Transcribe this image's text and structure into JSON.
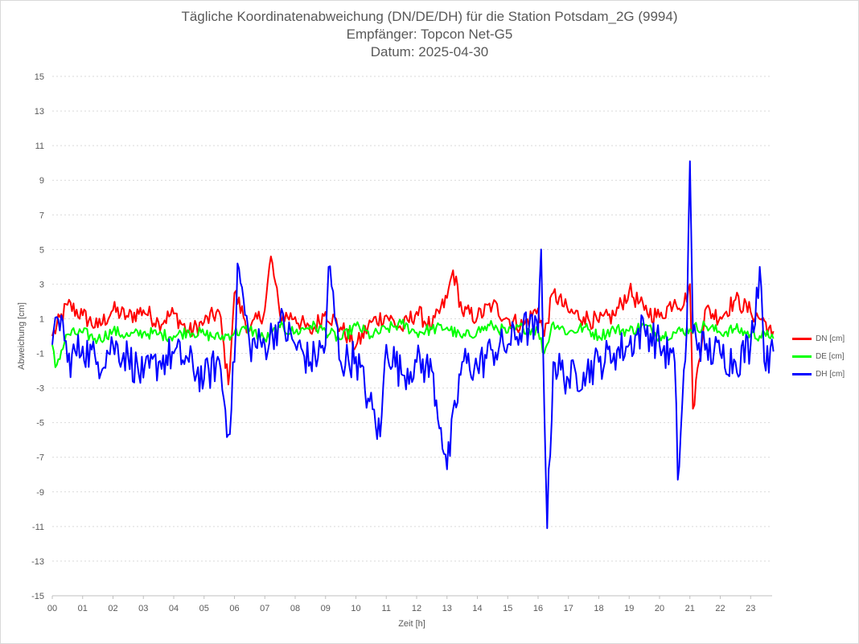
{
  "chart": {
    "title_line1": "Tägliche Koordinatenabweichung (DN/DE/DH) für die Station Potsdam_2G (9994)",
    "title_line2": "Empfänger: Topcon Net-G5",
    "title_line3": "Datum: 2025-04-30"
  },
  "chart_data": {
    "type": "line",
    "title": "Tägliche Koordinatenabweichung (DN/DE/DH) für die Station Potsdam_2G (9994)",
    "subtitle": [
      "Empfänger: Topcon Net-G5",
      "Datum: 2025-04-30"
    ],
    "xlabel": "Zeit [h]",
    "ylabel": "Abweichung [cm]",
    "xlim": [
      0,
      24
    ],
    "ylim": [
      -15,
      15
    ],
    "x_ticks": [
      "00",
      "01",
      "02",
      "03",
      "04",
      "05",
      "06",
      "07",
      "08",
      "09",
      "10",
      "11",
      "12",
      "13",
      "14",
      "15",
      "16",
      "17",
      "18",
      "19",
      "20",
      "21",
      "22",
      "23"
    ],
    "y_ticks": [
      15,
      13,
      11,
      9,
      7,
      5,
      3,
      1,
      -1,
      -3,
      -5,
      -7,
      -9,
      -11,
      -13,
      -15
    ],
    "grid": "horizontal dashed",
    "legend_position": "right",
    "sampling_interval_h": 0.05,
    "series": [
      {
        "name": "DN [cm]",
        "color": "#ff0000",
        "x": [
          0,
          0.5,
          1,
          1.5,
          2,
          2.5,
          3,
          3.5,
          4,
          4.5,
          5,
          5.5,
          5.8,
          6,
          6.5,
          7,
          7.2,
          7.5,
          8,
          8.5,
          9,
          9.5,
          10,
          10.5,
          11,
          11.5,
          12,
          12.5,
          13,
          13.2,
          13.5,
          14,
          14.5,
          15,
          15.5,
          16,
          16.2,
          16.5,
          17,
          17.5,
          18,
          18.5,
          19,
          19.5,
          20,
          20.5,
          20.8,
          21,
          21.1,
          21.5,
          22,
          22.5,
          23,
          23.5,
          23.7
        ],
        "y": [
          0,
          1.8,
          1.2,
          0.5,
          1.5,
          1.1,
          1.5,
          0.8,
          1.3,
          0.2,
          0.8,
          1.4,
          -2.8,
          2.5,
          0.3,
          1.5,
          4.6,
          1.2,
          1.1,
          0.2,
          1.4,
          0.5,
          -0.6,
          0.8,
          1.2,
          0.4,
          1.4,
          0.5,
          2.2,
          3.8,
          1.4,
          1.1,
          1.8,
          1,
          0.6,
          1.6,
          0,
          2.5,
          1.4,
          1.1,
          0.8,
          1.2,
          2.6,
          1.5,
          1.1,
          2.1,
          1.8,
          3,
          -4.2,
          1.5,
          1.1,
          2.1,
          1.4,
          0.8,
          0
        ]
      },
      {
        "name": "DE [cm]",
        "color": "#00ff00",
        "x": [
          0,
          0.1,
          0.5,
          1,
          1.5,
          2,
          2.5,
          3,
          3.5,
          4,
          4.5,
          5,
          5.5,
          6,
          6.5,
          7,
          7.5,
          8,
          8.5,
          9,
          9.5,
          10,
          10.5,
          11,
          11.5,
          12,
          12.5,
          13,
          13.5,
          14,
          14.5,
          15,
          15.5,
          16,
          16.2,
          16.5,
          17,
          17.5,
          18,
          18.5,
          19,
          19.5,
          20,
          20.5,
          21,
          21.5,
          22,
          22.5,
          23,
          23.5,
          23.7
        ],
        "y": [
          -0.5,
          -1.8,
          0.1,
          0.2,
          -0.2,
          0.3,
          0,
          0.2,
          0.1,
          0,
          0.3,
          0.1,
          -0.1,
          0.2,
          0.4,
          -0.2,
          0.5,
          0.2,
          0.6,
          0.3,
          -0.2,
          0.6,
          0,
          0.4,
          0.7,
          0.2,
          0.4,
          0.5,
          -0.1,
          0.3,
          0.6,
          0.2,
          0.5,
          0.3,
          -1,
          0.8,
          0.2,
          0.5,
          0,
          0.4,
          0.3,
          0.6,
          0,
          0.2,
          0.4,
          0.6,
          0.2,
          0.4,
          0.1,
          0,
          0.1
        ]
      },
      {
        "name": "DH [cm]",
        "color": "#0000ff",
        "x": [
          0,
          0.3,
          0.5,
          1,
          1.5,
          2,
          2.5,
          3,
          3.5,
          4,
          4.5,
          5,
          5.5,
          5.8,
          6,
          6.1,
          6.5,
          7,
          7.5,
          8,
          8.5,
          9,
          9.1,
          9.5,
          10,
          10.4,
          10.8,
          11,
          11.5,
          12,
          12.5,
          12.8,
          13,
          13.5,
          14,
          14.5,
          15,
          15.5,
          16,
          16.1,
          16.3,
          16.5,
          17,
          17.5,
          18,
          18.5,
          19,
          19.5,
          20,
          20.5,
          20.6,
          20.9,
          21,
          21.1,
          21.5,
          22,
          22.5,
          23,
          23.3,
          23.5,
          23.7
        ],
        "y": [
          -0.5,
          1.2,
          -1.5,
          -0.6,
          -1.5,
          -0.5,
          -1.2,
          -2.4,
          -1.5,
          -1,
          -1.5,
          -2.5,
          -1.4,
          -5.7,
          -1.5,
          4.2,
          -0.5,
          -0.5,
          0.8,
          -0.5,
          -1.5,
          -0.5,
          4,
          -1.5,
          -1.2,
          -3.6,
          -5.8,
          -0.5,
          -2.2,
          -1.5,
          -2,
          -5.3,
          -7.7,
          -1.5,
          -1.8,
          -0.8,
          -0.5,
          0.5,
          0.2,
          5,
          -11.1,
          -1.5,
          -2.5,
          -2.1,
          -1.5,
          -1,
          -0.5,
          0.5,
          -0.5,
          -1.5,
          -8.3,
          0.5,
          10.1,
          0.2,
          -0.8,
          -1,
          -1.5,
          -0.5,
          4,
          -2,
          -0.2
        ]
      }
    ]
  },
  "legend": {
    "items": [
      {
        "label": "DN [cm]",
        "color": "#ff0000"
      },
      {
        "label": "DE [cm]",
        "color": "#00ff00"
      },
      {
        "label": "DH [cm]",
        "color": "#0000ff"
      }
    ]
  }
}
